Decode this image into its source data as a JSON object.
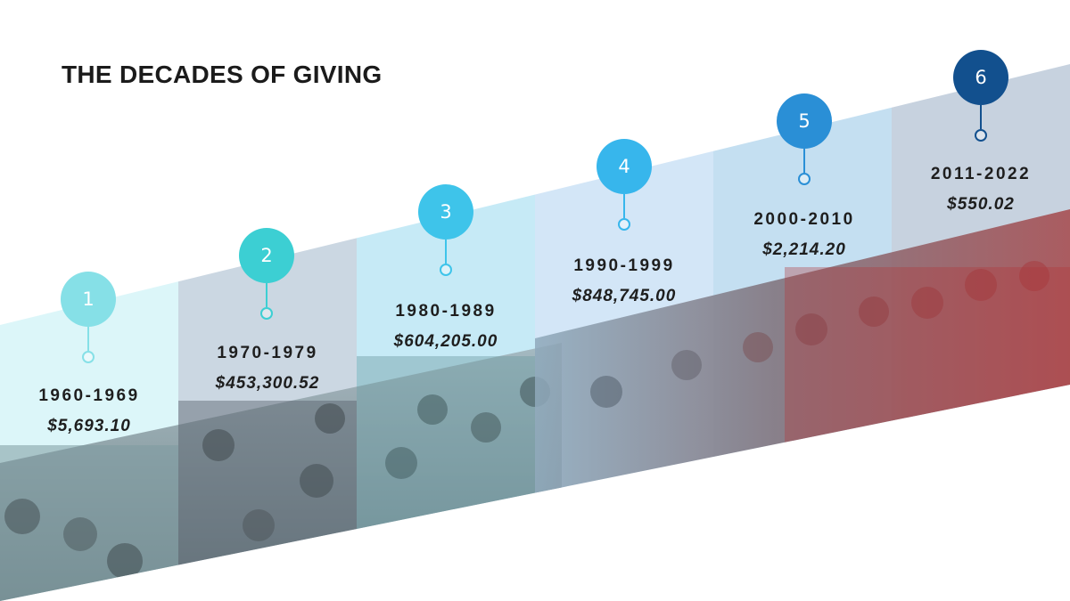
{
  "title": "THE DECADES OF GIVING",
  "decades": [
    {
      "number": "1",
      "years": "1960-1969",
      "amount": "$5,693.10",
      "color": "#86e0e7",
      "panel": "#dcf6f9"
    },
    {
      "number": "2",
      "years": "1970-1979",
      "amount": "$453,300.52",
      "color": "#3ccfd3",
      "panel": "#cbd7e2"
    },
    {
      "number": "3",
      "years": "1980-1989",
      "amount": "$604,205.00",
      "color": "#3ec4ea",
      "panel": "#c6eaf6"
    },
    {
      "number": "4",
      "years": "1990-1999",
      "amount": "$848,745.00",
      "color": "#37b6ec",
      "panel": "#d3e6f7"
    },
    {
      "number": "5",
      "years": "2000-2010",
      "amount": "$2,214.20",
      "color": "#2a8fd6",
      "panel": "#c4dff1"
    },
    {
      "number": "6",
      "years": "2011-2022",
      "amount": "$550.02",
      "color": "#12508e",
      "panel": "#c7d2df"
    }
  ]
}
